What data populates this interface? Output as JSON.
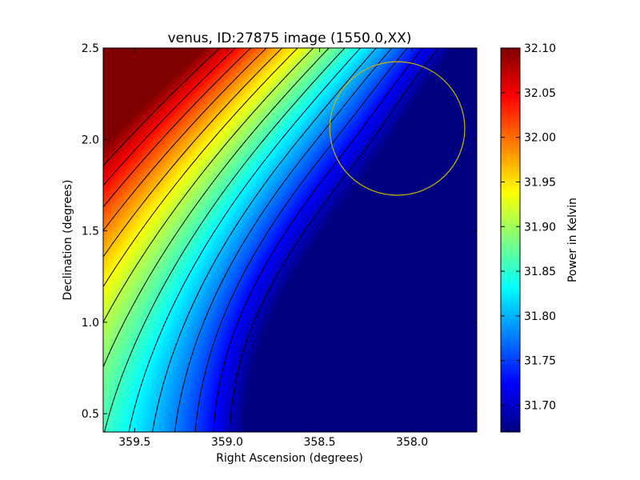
{
  "chart_data": {
    "type": "heatmap",
    "title": "venus, ID:27875 image (1550.0,XX)",
    "xlabel": "Right Ascension (degrees)",
    "ylabel": "Declination (degrees)",
    "colorbar_label": "Power in Kelvin",
    "colormap": "jet",
    "xlim": [
      359.67,
      357.65
    ],
    "ylim": [
      0.4,
      2.5
    ],
    "x_reversed": true,
    "x_ticks": [
      {
        "value": 359.5,
        "label": "359.5"
      },
      {
        "value": 359.0,
        "label": "359.0"
      },
      {
        "value": 358.5,
        "label": "358.5"
      },
      {
        "value": 358.0,
        "label": "358.0"
      }
    ],
    "y_ticks": [
      {
        "value": 0.5,
        "label": "0.5"
      },
      {
        "value": 1.0,
        "label": "1.0"
      },
      {
        "value": 1.5,
        "label": "1.5"
      },
      {
        "value": 2.0,
        "label": "2.0"
      },
      {
        "value": 2.5,
        "label": "2.5"
      }
    ],
    "color_range": [
      31.67,
      32.1
    ],
    "colorbar_ticks": [
      {
        "value": 31.7,
        "label": "31.70"
      },
      {
        "value": 31.75,
        "label": "31.75"
      },
      {
        "value": 31.8,
        "label": "31.80"
      },
      {
        "value": 31.85,
        "label": "31.85"
      },
      {
        "value": 31.9,
        "label": "31.90"
      },
      {
        "value": 31.95,
        "label": "31.95"
      },
      {
        "value": 32.0,
        "label": "32.00"
      },
      {
        "value": 32.05,
        "label": "32.05"
      },
      {
        "value": 32.1,
        "label": "32.10"
      }
    ],
    "field_extrema": {
      "max": {
        "ra": 359.67,
        "dec": 2.4,
        "value": 32.1
      },
      "min": {
        "ra": 358.45,
        "dec": 0.45,
        "value": 31.67
      }
    },
    "marker_circle": {
      "center_ra": 358.08,
      "center_dec": 2.06,
      "radius_deg": 0.365,
      "color": "#c8b400"
    },
    "contour_color": "#000000"
  }
}
